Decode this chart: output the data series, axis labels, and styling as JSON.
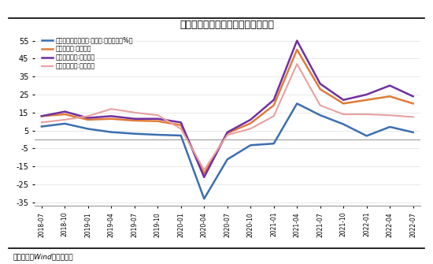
{
  "title": "图表：高技术产业投资快于全部投资",
  "footnote": "资料来源：Wind，泽平宏观",
  "ylim": [
    -37,
    60
  ],
  "yticks": [
    -35,
    -25,
    -15,
    -5,
    5,
    15,
    25,
    35,
    45,
    55
  ],
  "legend": [
    "固定资产投资完成额:制造业:累计同比（%）",
    "高技术产业:累计同比",
    "高技术制造业:累计同比",
    "高技术服务业:累计同比"
  ],
  "colors": [
    "#3c6faf",
    "#e07b39",
    "#7030a0",
    "#e8a0a0"
  ],
  "x_labels": [
    "2018-07",
    "2018-10",
    "2019-01",
    "2019-04",
    "2019-07",
    "2019-10",
    "2020-01",
    "2020-04",
    "2020-07",
    "2020-10",
    "2021-01",
    "2021-04",
    "2021-07",
    "2021-10",
    "2022-01",
    "2022-04",
    "2022-07"
  ],
  "series": {
    "fixed_mfg": [
      7.2,
      8.8,
      5.9,
      4.1,
      3.2,
      2.6,
      2.2,
      -33.0,
      -11.1,
      -3.2,
      -2.3,
      20.0,
      13.5,
      8.5,
      2.0,
      7.0,
      4.0
    ],
    "high_tech": [
      13.0,
      14.0,
      11.0,
      11.5,
      10.5,
      10.2,
      8.0,
      -19.0,
      3.5,
      9.0,
      19.0,
      50.0,
      28.0,
      20.0,
      22.0,
      24.0,
      20.0
    ],
    "high_mfg": [
      13.0,
      15.5,
      12.0,
      13.0,
      11.5,
      11.5,
      9.5,
      -21.0,
      4.0,
      11.0,
      22.0,
      55.0,
      31.0,
      22.0,
      25.0,
      30.0,
      24.0
    ],
    "high_svc": [
      9.5,
      11.0,
      13.0,
      17.0,
      15.0,
      13.5,
      6.0,
      -17.0,
      2.5,
      6.0,
      13.0,
      42.0,
      19.0,
      14.0,
      14.0,
      13.5,
      12.5
    ]
  }
}
